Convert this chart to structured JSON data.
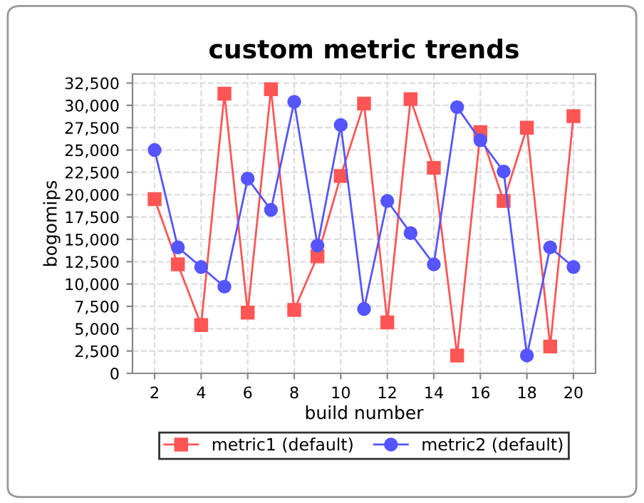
{
  "chart_data": {
    "type": "line",
    "title": "custom metric trends",
    "xlabel": "build number",
    "ylabel": "bogomips",
    "x": [
      2,
      3,
      4,
      5,
      6,
      7,
      8,
      9,
      10,
      11,
      12,
      13,
      14,
      15,
      16,
      17,
      18,
      19,
      20
    ],
    "series": [
      {
        "name": "metric1 (default)",
        "color": "#ff5555",
        "marker": "square",
        "values": [
          19500,
          12200,
          5400,
          31300,
          6800,
          31800,
          7100,
          13100,
          22100,
          30200,
          5700,
          30700,
          23000,
          2000,
          27000,
          19300,
          27500,
          3000,
          28800
        ]
      },
      {
        "name": "metric2 (default)",
        "color": "#5555ff",
        "marker": "circle",
        "values": [
          25000,
          14100,
          11900,
          9700,
          21800,
          18300,
          30400,
          14300,
          27800,
          7200,
          19300,
          15700,
          12200,
          29800,
          26100,
          22600,
          2000,
          14100,
          11900
        ]
      }
    ],
    "xlim": [
      1.05,
      20.95
    ],
    "xticks": [
      2,
      4,
      6,
      8,
      10,
      12,
      14,
      16,
      18,
      20
    ],
    "ylim": [
      0,
      33500
    ],
    "yticks": [
      {
        "value": 0,
        "label": "0"
      },
      {
        "value": 2500,
        "label": "2,500"
      },
      {
        "value": 5000,
        "label": "5,000"
      },
      {
        "value": 7500,
        "label": "7,500"
      },
      {
        "value": 10000,
        "label": "10,000"
      },
      {
        "value": 12500,
        "label": "12,500"
      },
      {
        "value": 15000,
        "label": "15,000"
      },
      {
        "value": 17500,
        "label": "17,500"
      },
      {
        "value": 20000,
        "label": "20,000"
      },
      {
        "value": 22500,
        "label": "22,500"
      },
      {
        "value": 25000,
        "label": "25,000"
      },
      {
        "value": 27500,
        "label": "27,500"
      },
      {
        "value": 30000,
        "label": "30,000"
      },
      {
        "value": 32500,
        "label": "32,500"
      }
    ],
    "grid": true,
    "legend": "bottom",
    "line_style": "solid"
  }
}
